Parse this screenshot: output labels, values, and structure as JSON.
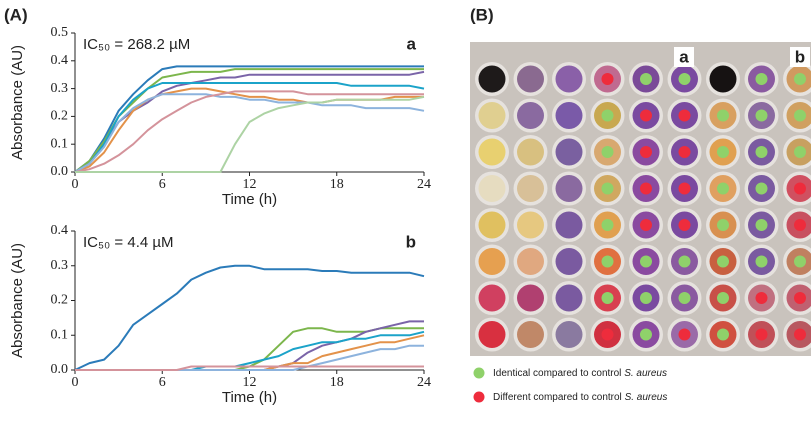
{
  "panel_labels": [
    "(A)",
    "(B)"
  ],
  "chart_data": [
    {
      "type": "line",
      "title": "IC₅₀ = 268.2 µM",
      "annotation": "a",
      "xlabel": "Time (h)",
      "ylabel": "Absorbance (AU)",
      "x": [
        0,
        1,
        2,
        3,
        4,
        5,
        6,
        7,
        8,
        9,
        10,
        11,
        12,
        13,
        14,
        15,
        16,
        17,
        18,
        19,
        20,
        21,
        22,
        23,
        24
      ],
      "xlim": [
        0,
        24
      ],
      "xticks": [
        0,
        6,
        12,
        18,
        24
      ],
      "ylim": [
        0,
        0.5
      ],
      "yticks": [
        {
          "value": 0,
          "label": "0.0"
        },
        0.1,
        0.2,
        0.3,
        0.4,
        0.5
      ],
      "series": [
        {
          "color": "#2b7bb9",
          "values": [
            0,
            0.04,
            0.12,
            0.22,
            0.28,
            0.33,
            0.37,
            0.38,
            0.38,
            0.38,
            0.38,
            0.38,
            0.38,
            0.38,
            0.38,
            0.38,
            0.38,
            0.38,
            0.38,
            0.38,
            0.38,
            0.38,
            0.38,
            0.38,
            0.38
          ]
        },
        {
          "color": "#7cb64c",
          "values": [
            0,
            0.04,
            0.11,
            0.2,
            0.25,
            0.3,
            0.34,
            0.35,
            0.36,
            0.36,
            0.36,
            0.37,
            0.37,
            0.37,
            0.37,
            0.37,
            0.37,
            0.37,
            0.37,
            0.37,
            0.37,
            0.37,
            0.37,
            0.37,
            0.37
          ]
        },
        {
          "color": "#7a64a8",
          "values": [
            0,
            0.03,
            0.1,
            0.18,
            0.22,
            0.25,
            0.29,
            0.31,
            0.32,
            0.33,
            0.34,
            0.34,
            0.35,
            0.35,
            0.35,
            0.35,
            0.35,
            0.35,
            0.35,
            0.35,
            0.35,
            0.35,
            0.35,
            0.35,
            0.36
          ]
        },
        {
          "color": "#1ba3c9",
          "values": [
            0,
            0.03,
            0.1,
            0.2,
            0.26,
            0.3,
            0.32,
            0.32,
            0.32,
            0.32,
            0.32,
            0.32,
            0.32,
            0.32,
            0.32,
            0.32,
            0.32,
            0.32,
            0.32,
            0.31,
            0.31,
            0.31,
            0.31,
            0.31,
            0.3
          ]
        },
        {
          "color": "#e3924a",
          "values": [
            0,
            0.02,
            0.07,
            0.15,
            0.22,
            0.26,
            0.28,
            0.29,
            0.3,
            0.3,
            0.29,
            0.28,
            0.27,
            0.27,
            0.26,
            0.26,
            0.25,
            0.25,
            0.26,
            0.26,
            0.26,
            0.26,
            0.27,
            0.27,
            0.27
          ]
        },
        {
          "color": "#8db3dd",
          "values": [
            0,
            0.03,
            0.09,
            0.18,
            0.23,
            0.26,
            0.28,
            0.28,
            0.28,
            0.28,
            0.27,
            0.27,
            0.26,
            0.26,
            0.25,
            0.25,
            0.25,
            0.24,
            0.24,
            0.24,
            0.23,
            0.23,
            0.23,
            0.23,
            0.22
          ]
        },
        {
          "color": "#d4939b",
          "values": [
            0,
            0.01,
            0.03,
            0.06,
            0.1,
            0.15,
            0.19,
            0.22,
            0.25,
            0.27,
            0.28,
            0.29,
            0.29,
            0.29,
            0.29,
            0.29,
            0.28,
            0.28,
            0.28,
            0.28,
            0.28,
            0.28,
            0.28,
            0.28,
            0.28
          ]
        },
        {
          "color": "#add3a4",
          "values": [
            0,
            0,
            0,
            0,
            0,
            0,
            0,
            0,
            0,
            0,
            0,
            0.1,
            0.18,
            0.21,
            0.23,
            0.24,
            0.25,
            0.25,
            0.26,
            0.26,
            0.26,
            0.26,
            0.26,
            0.26,
            0.27
          ]
        }
      ]
    },
    {
      "type": "line",
      "title": "IC₅₀ = 4.4 µM",
      "annotation": "b",
      "xlabel": "Time (h)",
      "ylabel": "Absorbance (AU)",
      "x": [
        0,
        1,
        2,
        3,
        4,
        5,
        6,
        7,
        8,
        9,
        10,
        11,
        12,
        13,
        14,
        15,
        16,
        17,
        18,
        19,
        20,
        21,
        22,
        23,
        24
      ],
      "xlim": [
        0,
        24
      ],
      "xticks": [
        0,
        6,
        12,
        18,
        24
      ],
      "ylim": [
        0,
        0.4
      ],
      "yticks": [
        {
          "value": 0,
          "label": "0.0"
        },
        0.1,
        0.2,
        0.3,
        0.4
      ],
      "series": [
        {
          "color": "#2b7bb9",
          "values": [
            0,
            0.02,
            0.03,
            0.07,
            0.13,
            0.16,
            0.19,
            0.22,
            0.26,
            0.28,
            0.295,
            0.3,
            0.3,
            0.29,
            0.29,
            0.29,
            0.29,
            0.285,
            0.285,
            0.28,
            0.28,
            0.28,
            0.28,
            0.28,
            0.27
          ]
        },
        {
          "color": "#7cb64c",
          "values": [
            0,
            0,
            0,
            0,
            0,
            0,
            0,
            0,
            0,
            0,
            0,
            0,
            0.01,
            0.03,
            0.07,
            0.11,
            0.12,
            0.12,
            0.11,
            0.11,
            0.11,
            0.12,
            0.12,
            0.12,
            0.12
          ]
        },
        {
          "color": "#7a64a8",
          "values": [
            0,
            0,
            0,
            0,
            0,
            0,
            0,
            0,
            0,
            0,
            0,
            0,
            0,
            0,
            0.01,
            0.02,
            0.05,
            0.07,
            0.08,
            0.09,
            0.11,
            0.12,
            0.13,
            0.14,
            0.14
          ]
        },
        {
          "color": "#1ba3c9",
          "values": [
            0,
            0,
            0,
            0,
            0,
            0,
            0,
            0,
            0,
            0.01,
            0.01,
            0.01,
            0.02,
            0.03,
            0.04,
            0.06,
            0.07,
            0.08,
            0.08,
            0.09,
            0.09,
            0.1,
            0.1,
            0.1,
            0.11
          ]
        },
        {
          "color": "#e3924a",
          "values": [
            0,
            0,
            0,
            0,
            0,
            0,
            0,
            0,
            0,
            0,
            0,
            0,
            0,
            0,
            0.01,
            0.02,
            0.02,
            0.04,
            0.05,
            0.06,
            0.07,
            0.08,
            0.08,
            0.09,
            0.1
          ]
        },
        {
          "color": "#8db3dd",
          "values": [
            0,
            0,
            0,
            0,
            0,
            0,
            0,
            0,
            0,
            0,
            0,
            0,
            0,
            0,
            0,
            0,
            0.01,
            0.02,
            0.03,
            0.04,
            0.05,
            0.06,
            0.06,
            0.07,
            0.07
          ]
        },
        {
          "color": "#d4939b",
          "values": [
            0,
            0,
            0,
            0,
            0,
            0,
            0,
            0,
            0.01,
            0.01,
            0.01,
            0.01,
            0.01,
            0.01,
            0.01,
            0.01,
            0.01,
            0.01,
            0.01,
            0.01,
            0.01,
            0.01,
            0.01,
            0.01,
            0.01
          ]
        }
      ]
    }
  ],
  "plate": {
    "labels": [
      "a",
      "b"
    ],
    "legend": [
      {
        "text": "Identical compared to control ",
        "species": "S. aureus",
        "color": "#8fd16a"
      },
      {
        "text": "Different compared to control ",
        "species": "S. aureus",
        "color": "#ee2c3c"
      }
    ]
  }
}
